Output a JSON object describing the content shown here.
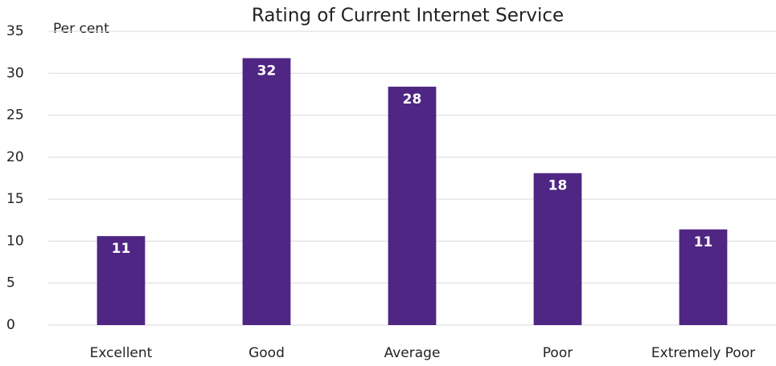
{
  "chart_data": {
    "type": "bar",
    "title": "Rating of Current Internet Service",
    "y_label": "Per cent",
    "categories": [
      "Excellent",
      "Good",
      "Average",
      "Poor",
      "Extremely Poor"
    ],
    "values": [
      10.6,
      31.8,
      28.4,
      18.1,
      11.4
    ],
    "value_labels": [
      "11",
      "32",
      "28",
      "18",
      "11"
    ],
    "color": "#4f2683",
    "ylim": [
      0,
      35
    ],
    "yticks": [
      0,
      5,
      10,
      15,
      20,
      25,
      30,
      35
    ],
    "grid": true
  }
}
